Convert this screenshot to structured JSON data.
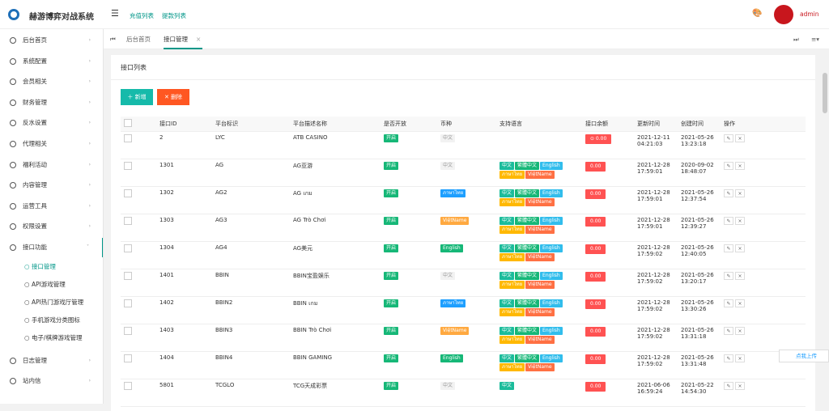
{
  "header": {
    "title": "赫游博弈对战系统",
    "links": [
      "充值列表",
      "提款列表"
    ],
    "user": "admin"
  },
  "sidebar": {
    "items": [
      "后台首页",
      "系统配置",
      "会员相关",
      "财务管理",
      "反水设置",
      "代理相关",
      "福利活动",
      "内容管理",
      "运营工具",
      "权限设置",
      "接口功能"
    ],
    "subitems": [
      "接口管理",
      "API游戏管理",
      "API热门游戏厅管理",
      "手机游戏分类图标",
      "电子/棋牌游戏管理"
    ],
    "after": [
      "日志管理",
      "站内信"
    ]
  },
  "tabs": [
    "后台首页",
    "接口管理"
  ],
  "panel": {
    "title": "接口列表",
    "buttons": [
      "新增",
      "删除"
    ]
  },
  "table": {
    "headers": [
      "接口ID",
      "平台标识",
      "平台描述名称",
      "是否开放",
      "币种",
      "支持语言",
      "接口余额",
      "更新时间",
      "创建时间",
      "操作"
    ],
    "rows": [
      {
        "id": "2",
        "code": "LYC",
        "name": "ATB CASINO",
        "open": "开启",
        "currency": {
          "text": "中文",
          "color": "#f2f2f2"
        },
        "langs": [],
        "balance": "⊙ 0.00",
        "updated": [
          "2021-12-11",
          "04:21:03"
        ],
        "created": [
          "2021-05-26",
          "13:23:18"
        ]
      },
      {
        "id": "1301",
        "code": "AG",
        "name": "AG亚游",
        "open": "开启",
        "currency": {
          "text": "中文",
          "color": "#f2f2f2"
        },
        "langs": [
          {
            "text": "中文",
            "color": "#1bbc9b"
          },
          {
            "text": "繁體中文",
            "color": "#16b777"
          },
          {
            "text": "English",
            "color": "#31bdec"
          },
          {
            "text": "ภาษาไทย",
            "color": "#ffb800"
          },
          {
            "text": "ViệtName",
            "color": "#ff7043"
          }
        ],
        "balance": "0.00",
        "updated": [
          "2021-12-28",
          "17:59:01"
        ],
        "created": [
          "2020-09-02",
          "18:48:07"
        ]
      },
      {
        "id": "1302",
        "code": "AG2",
        "name": "AG เกม",
        "open": "开启",
        "currency": {
          "text": "ภาษาไทย",
          "color": "#1e9fff"
        },
        "langs": [
          {
            "text": "中文",
            "color": "#1bbc9b"
          },
          {
            "text": "繁體中文",
            "color": "#16b777"
          },
          {
            "text": "English",
            "color": "#31bdec"
          },
          {
            "text": "ภาษาไทย",
            "color": "#ffb800"
          },
          {
            "text": "ViệtName",
            "color": "#ff7043"
          }
        ],
        "balance": "0.00",
        "updated": [
          "2021-12-28",
          "17:59:01"
        ],
        "created": [
          "2021-05-26",
          "12:37:54"
        ]
      },
      {
        "id": "1303",
        "code": "AG3",
        "name": "AG Trò Chơi",
        "open": "开启",
        "currency": {
          "text": "ViệtName",
          "color": "#ffa940"
        },
        "langs": [
          {
            "text": "中文",
            "color": "#1bbc9b"
          },
          {
            "text": "繁體中文",
            "color": "#16b777"
          },
          {
            "text": "English",
            "color": "#31bdec"
          },
          {
            "text": "ภาษาไทย",
            "color": "#ffb800"
          },
          {
            "text": "ViệtName",
            "color": "#ff7043"
          }
        ],
        "balance": "0.00",
        "updated": [
          "2021-12-28",
          "17:59:01"
        ],
        "created": [
          "2021-05-26",
          "12:39:27"
        ]
      },
      {
        "id": "1304",
        "code": "AG4",
        "name": "AG美元",
        "open": "开启",
        "currency": {
          "text": "English",
          "color": "#16b777"
        },
        "langs": [
          {
            "text": "中文",
            "color": "#1bbc9b"
          },
          {
            "text": "繁體中文",
            "color": "#16b777"
          },
          {
            "text": "English",
            "color": "#31bdec"
          },
          {
            "text": "ภาษาไทย",
            "color": "#ffb800"
          },
          {
            "text": "ViệtName",
            "color": "#ff7043"
          }
        ],
        "balance": "0.00",
        "updated": [
          "2021-12-28",
          "17:59:02"
        ],
        "created": [
          "2021-05-26",
          "12:40:05"
        ]
      },
      {
        "id": "1401",
        "code": "BBIN",
        "name": "BBIN宝盈娱乐",
        "open": "开启",
        "currency": {
          "text": "中文",
          "color": "#f2f2f2"
        },
        "langs": [
          {
            "text": "中文",
            "color": "#1bbc9b"
          },
          {
            "text": "繁體中文",
            "color": "#16b777"
          },
          {
            "text": "English",
            "color": "#31bdec"
          },
          {
            "text": "ภาษาไทย",
            "color": "#ffb800"
          },
          {
            "text": "ViệtName",
            "color": "#ff7043"
          }
        ],
        "balance": "0.00",
        "updated": [
          "2021-12-28",
          "17:59:02"
        ],
        "created": [
          "2021-05-26",
          "13:20:17"
        ]
      },
      {
        "id": "1402",
        "code": "BBIN2",
        "name": "BBIN เกม",
        "open": "开启",
        "currency": {
          "text": "ภาษาไทย",
          "color": "#1e9fff"
        },
        "langs": [
          {
            "text": "中文",
            "color": "#1bbc9b"
          },
          {
            "text": "繁體中文",
            "color": "#16b777"
          },
          {
            "text": "English",
            "color": "#31bdec"
          },
          {
            "text": "ภาษาไทย",
            "color": "#ffb800"
          },
          {
            "text": "ViệtName",
            "color": "#ff7043"
          }
        ],
        "balance": "0.00",
        "updated": [
          "2021-12-28",
          "17:59:02"
        ],
        "created": [
          "2021-05-26",
          "13:30:26"
        ]
      },
      {
        "id": "1403",
        "code": "BBIN3",
        "name": "BBIN Trò Chơi",
        "open": "开启",
        "currency": {
          "text": "ViệtName",
          "color": "#ffa940"
        },
        "langs": [
          {
            "text": "中文",
            "color": "#1bbc9b"
          },
          {
            "text": "繁體中文",
            "color": "#16b777"
          },
          {
            "text": "English",
            "color": "#31bdec"
          },
          {
            "text": "ภาษาไทย",
            "color": "#ffb800"
          },
          {
            "text": "ViệtName",
            "color": "#ff7043"
          }
        ],
        "balance": "0.00",
        "updated": [
          "2021-12-28",
          "17:59:02"
        ],
        "created": [
          "2021-05-26",
          "13:31:18"
        ]
      },
      {
        "id": "1404",
        "code": "BBIN4",
        "name": "BBIN GAMING",
        "open": "开启",
        "currency": {
          "text": "English",
          "color": "#16b777"
        },
        "langs": [
          {
            "text": "中文",
            "color": "#1bbc9b"
          },
          {
            "text": "繁體中文",
            "color": "#16b777"
          },
          {
            "text": "English",
            "color": "#31bdec"
          },
          {
            "text": "ภาษาไทย",
            "color": "#ffb800"
          },
          {
            "text": "ViệtName",
            "color": "#ff7043"
          }
        ],
        "balance": "0.00",
        "updated": [
          "2021-12-28",
          "17:59:02"
        ],
        "created": [
          "2021-05-26",
          "13:31:48"
        ]
      },
      {
        "id": "5801",
        "code": "TCGLO",
        "name": "TCG天成彩票",
        "open": "开启",
        "currency": {
          "text": "中文",
          "color": "#f2f2f2"
        },
        "langs": [
          {
            "text": "中文",
            "color": "#1bbc9b"
          }
        ],
        "balance": "0.00",
        "updated": [
          "2021-06-06",
          "16:59:24"
        ],
        "created": [
          "2021-05-22",
          "14:54:30"
        ]
      }
    ]
  },
  "float_button": "点我上传"
}
